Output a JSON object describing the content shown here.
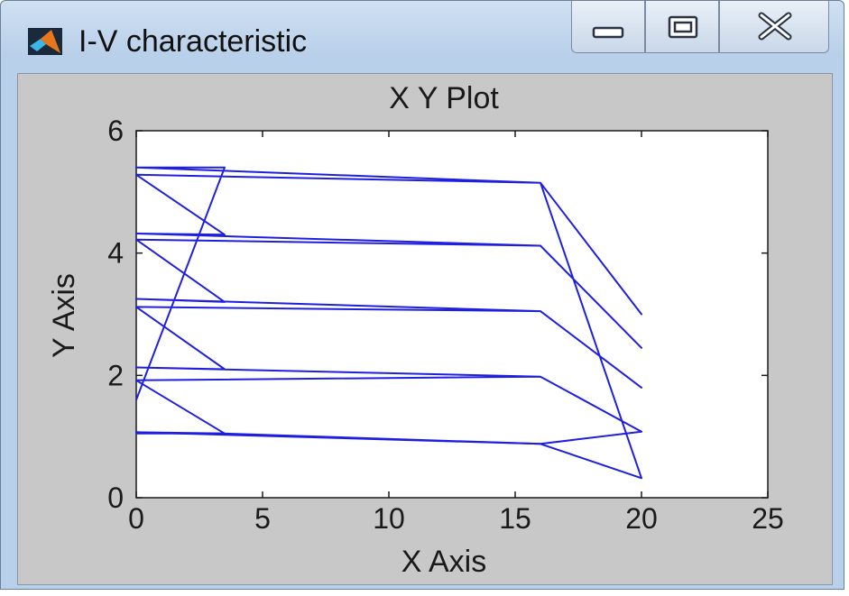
{
  "window": {
    "title": "I-V characteristic",
    "icons": {
      "app": "matlab-logo-icon",
      "minimize": "minimize-icon",
      "maximize": "maximize-icon",
      "close": "close-icon"
    }
  },
  "chart_data": {
    "type": "line",
    "title": "X Y Plot",
    "xlabel": "X Axis",
    "ylabel": "Y Axis",
    "xlim": [
      0,
      25
    ],
    "ylim": [
      0,
      6
    ],
    "xticks": [
      0,
      5,
      10,
      15,
      20,
      25
    ],
    "yticks": [
      0,
      2,
      4,
      6
    ],
    "grid": false,
    "legend": null,
    "line_color": "#1f1fe0",
    "plot_background": "#ffffff",
    "figure_background": "#c8c8c8",
    "series": [
      {
        "x": [
          0,
          3.5,
          0,
          16,
          20,
          16,
          0,
          3.5,
          0,
          16,
          20,
          16,
          0,
          3.5,
          0,
          16,
          20,
          16,
          0,
          3.5,
          0,
          16,
          20,
          16,
          0,
          3.5,
          0,
          16,
          20,
          16
        ],
        "y": [
          1.6,
          5.4,
          5.4,
          5.15,
          3.0,
          5.15,
          5.28,
          4.3,
          4.32,
          4.12,
          2.45,
          4.12,
          4.22,
          3.2,
          3.25,
          3.05,
          1.8,
          3.05,
          3.12,
          2.1,
          2.13,
          1.98,
          1.08,
          1.98,
          1.92,
          1.05,
          1.07,
          0.88,
          0.32,
          5.15
        ]
      },
      {
        "x": [
          0,
          3.5,
          16,
          20,
          16
        ],
        "y": [
          1.05,
          1.05,
          0.88,
          1.08,
          0.88
        ]
      }
    ]
  }
}
